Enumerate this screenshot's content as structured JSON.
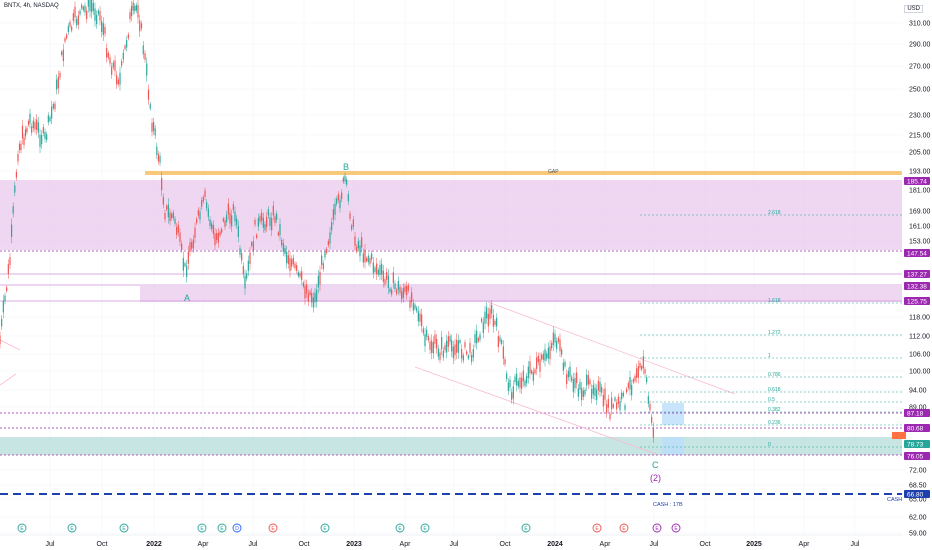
{
  "header": {
    "title": "BNTX, 4h, NASDAQ"
  },
  "currency": "USD",
  "colors": {
    "green": "#26a69a",
    "red": "#ef5350",
    "purple": "#9c27b0",
    "orange": "#f7a338",
    "blue": "#2962ff",
    "teal_zone": "#b2dfdb",
    "zone": "#e1bee7"
  },
  "chart_data": {
    "type": "candlestick",
    "y_ticks": [
      310.0,
      290.0,
      270.0,
      250.0,
      230.0,
      215.0,
      205.0,
      193.0,
      181.0,
      169.0,
      161.0,
      153.0,
      118.0,
      112.0,
      106.0,
      100.0,
      94.0,
      89.0,
      72.0,
      68.5,
      65.0,
      62.0,
      59.0
    ],
    "x_labels": [
      "Jul",
      "Oct",
      "2022",
      "Apr",
      "Jul",
      "Oct",
      "2023",
      "Apr",
      "Jul",
      "Oct",
      "2024",
      "Apr",
      "Jul",
      "Oct",
      "2025",
      "Apr",
      "Jul"
    ],
    "price_badges": [
      {
        "value": "185.74",
        "kind": "purple"
      },
      {
        "value": "147.54",
        "kind": "purple"
      },
      {
        "value": "137.27",
        "kind": "purple"
      },
      {
        "value": "132.38",
        "kind": "purple"
      },
      {
        "value": "125.75",
        "kind": "purple"
      },
      {
        "value": "87.18",
        "kind": "purple"
      },
      {
        "value": "80.68",
        "kind": "purple"
      },
      {
        "value": "78.73",
        "kind": "teal"
      },
      {
        "value": "76.05",
        "kind": "purple"
      },
      {
        "value": "66.80",
        "kind": "blue"
      }
    ],
    "fib_levels": [
      {
        "label": "2.618",
        "value": 166.5
      },
      {
        "label": "1.618",
        "value": 125.5
      },
      {
        "label": "1.272",
        "value": 111.5
      },
      {
        "label": "1",
        "value": 104.5
      },
      {
        "label": "0.786",
        "value": 98.8
      },
      {
        "label": "0.618",
        "value": 94.6
      },
      {
        "label": "0.5",
        "value": 91.2
      },
      {
        "label": "0.382",
        "value": 87.6
      },
      {
        "label": "0.236",
        "value": 83.3
      },
      {
        "label": "0",
        "value": 77.4
      }
    ],
    "wave_labels": [
      "B",
      "A",
      "C",
      "(2)"
    ],
    "zone_labels": {
      "gap": "GAP",
      "cash": "CASH : 17B",
      "cash_right": "CASH"
    },
    "event_markers": [
      "E",
      "E",
      "E",
      "E",
      "E",
      "D",
      "E",
      "E",
      "E",
      "E",
      "E",
      "E",
      "E",
      "E",
      "E",
      "E"
    ]
  }
}
